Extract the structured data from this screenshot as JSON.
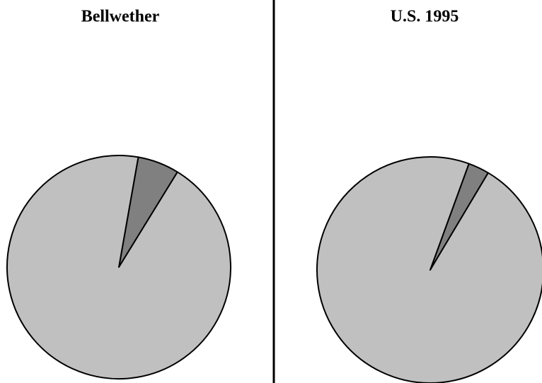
{
  "chart_data": [
    {
      "type": "pie",
      "title": "Bellwether",
      "values": [
        6,
        94
      ],
      "colors": [
        "#808080",
        "#c0c0c0"
      ],
      "startangle": 10
    },
    {
      "type": "pie",
      "title": "U.S. 1995",
      "values": [
        3,
        97
      ],
      "colors": [
        "#808080",
        "#c0c0c0"
      ],
      "startangle": 20
    }
  ]
}
